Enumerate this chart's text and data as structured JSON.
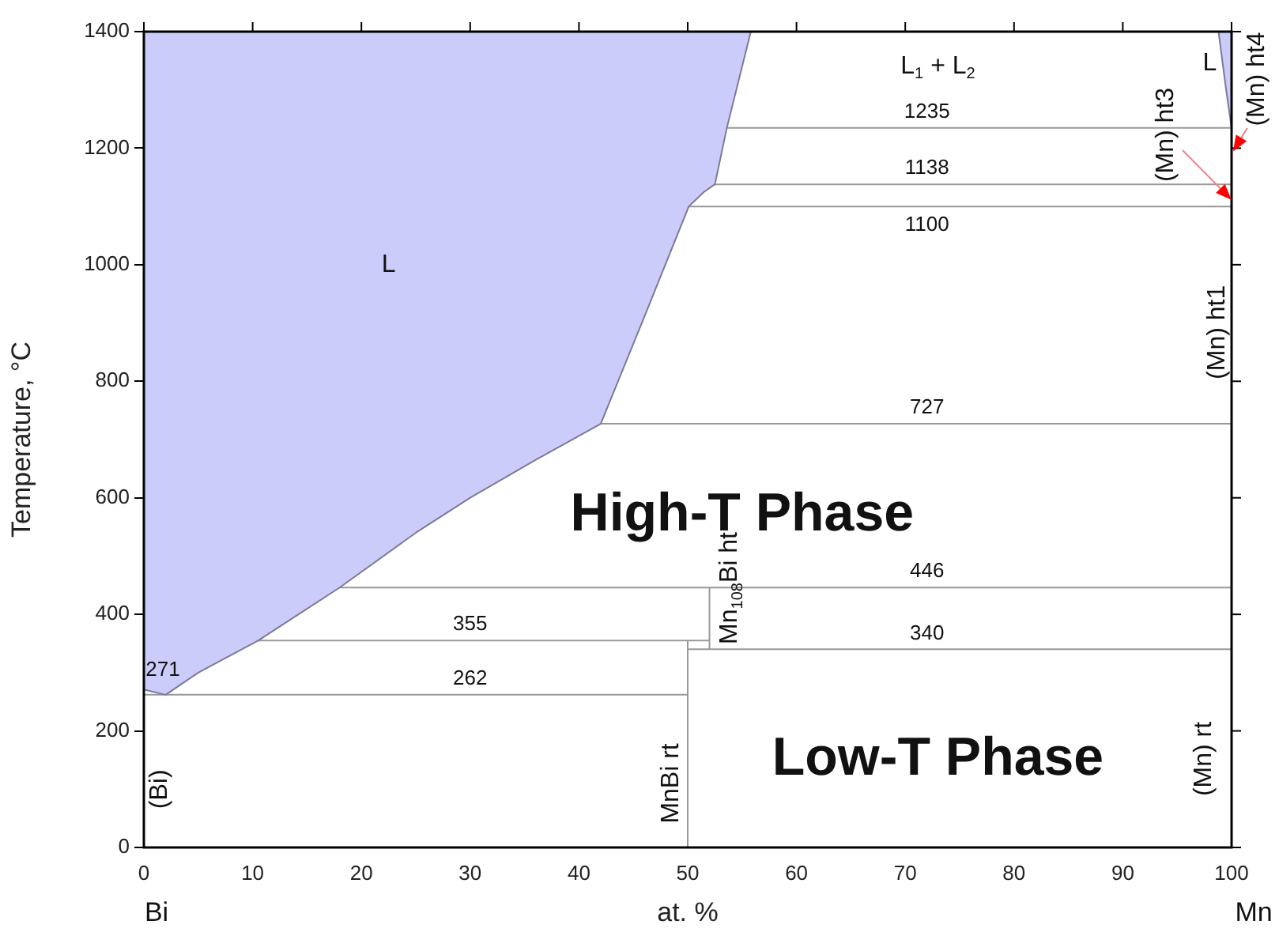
{
  "chart_data": {
    "type": "line",
    "xlabel": "at. %",
    "ylabel": "Temperature, °C",
    "xlim": [
      0,
      100
    ],
    "xticks": [
      0,
      10,
      20,
      30,
      40,
      50,
      60,
      70,
      80,
      90,
      100
    ],
    "ylim": [
      0,
      1400
    ],
    "yticks": [
      0,
      200,
      400,
      600,
      800,
      1000,
      1200,
      1400
    ],
    "grid": false,
    "legend": false,
    "marker": "none",
    "line_style": "solid",
    "series": [
      {
        "type": "area",
        "color": "#ccccfa",
        "x": [
          0,
          0,
          2,
          5,
          10.5,
          18,
          25,
          30,
          36,
          42,
          46,
          50.1,
          51.5,
          52.5,
          53.6,
          55.8
        ],
        "values": [
          1400,
          271,
          262,
          300,
          355,
          446,
          540,
          600,
          665,
          727,
          910,
          1100,
          1125,
          1138,
          1235,
          1400
        ]
      },
      {
        "type": "area",
        "color": "#ccccfa",
        "x": [
          98.8,
          99.5,
          100,
          100
        ],
        "values": [
          1400,
          1300,
          1235,
          1400
        ]
      },
      {
        "type": "line",
        "color": "#999999",
        "x": [
          53.6,
          100
        ],
        "values": [
          1235,
          1235
        ]
      },
      {
        "type": "line",
        "color": "#999999",
        "x": [
          52.5,
          100
        ],
        "values": [
          1138,
          1138
        ]
      },
      {
        "type": "line",
        "color": "#999999",
        "x": [
          50.1,
          100
        ],
        "values": [
          1100,
          1100
        ]
      },
      {
        "type": "line",
        "color": "#999999",
        "x": [
          42,
          100
        ],
        "values": [
          727,
          727
        ]
      },
      {
        "type": "line",
        "color": "#999999",
        "x": [
          18,
          100
        ],
        "values": [
          446,
          446
        ]
      },
      {
        "type": "line",
        "color": "#999999",
        "x": [
          10.5,
          52
        ],
        "values": [
          355,
          355
        ]
      },
      {
        "type": "line",
        "color": "#999999",
        "x": [
          50,
          100
        ],
        "values": [
          340,
          340
        ]
      },
      {
        "type": "line",
        "color": "#999999",
        "x": [
          0,
          50
        ],
        "values": [
          262,
          262
        ]
      },
      {
        "type": "line",
        "color": "#999999",
        "x": [
          50,
          50
        ],
        "values": [
          0,
          355
        ]
      },
      {
        "type": "line",
        "color": "#999999",
        "x": [
          52,
          52
        ],
        "values": [
          340,
          446
        ]
      }
    ],
    "annotations": [
      {
        "text": "1235",
        "x": 72,
        "y": 1235
      },
      {
        "text": "1138",
        "x": 72,
        "y": 1138
      },
      {
        "text": "1100",
        "x": 72,
        "y": 1100
      },
      {
        "text": "727",
        "x": 72,
        "y": 727
      },
      {
        "text": "446",
        "x": 72,
        "y": 446
      },
      {
        "text": "355",
        "x": 30,
        "y": 355
      },
      {
        "text": "340",
        "x": 72,
        "y": 340
      },
      {
        "text": "262",
        "x": 30,
        "y": 262
      },
      {
        "text": "271",
        "x": 0,
        "y": 271
      },
      "L",
      "L$_{1}$ + L$_{2}$",
      "High-T Phase",
      "Low-T Phase",
      "L",
      "(Bi)",
      "MnBi rt",
      "Mn$_{108}$Bi ht",
      "(Mn) rt",
      "(Mn) ht1",
      "(Mn) ht3",
      "(Mn) ht4",
      "Bi",
      "Mn"
    ]
  }
}
